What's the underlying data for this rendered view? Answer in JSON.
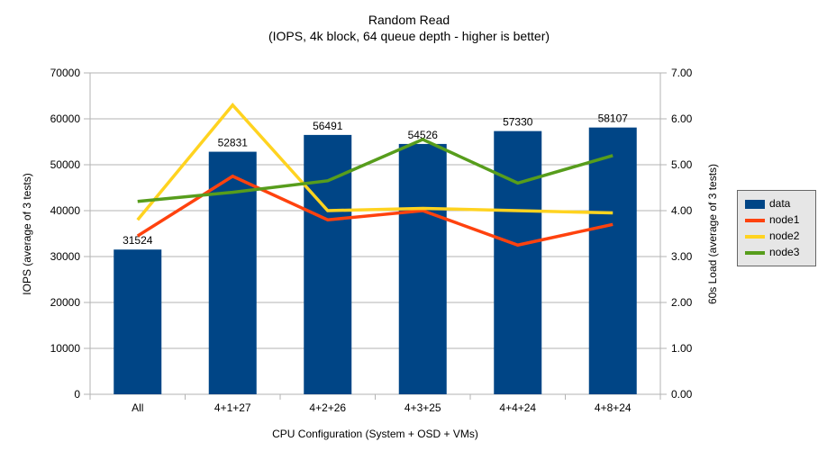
{
  "title": {
    "line1": "Random Read",
    "line2": "(IOPS, 4k block, 64 queue depth - higher is better)"
  },
  "chart_data": {
    "type": "bar",
    "subtype": "bar-and-line-combo",
    "categories": [
      "All",
      "4+1+27",
      "4+2+26",
      "4+3+25",
      "4+4+24",
      "4+8+24"
    ],
    "bar_series": {
      "name": "data",
      "color": "#004586",
      "axis": "left",
      "values": [
        31524,
        52831,
        56491,
        54526,
        57330,
        58107
      ],
      "data_labels": [
        "31524",
        "52831",
        "56491",
        "54526",
        "57330",
        "58107"
      ]
    },
    "line_series": [
      {
        "name": "node1",
        "color": "#ff420e",
        "axis": "right",
        "values": [
          3.45,
          4.75,
          3.8,
          4.0,
          3.25,
          3.7
        ]
      },
      {
        "name": "node2",
        "color": "#ffd320",
        "axis": "right",
        "values": [
          3.8,
          6.3,
          4.0,
          4.05,
          4.0,
          3.95
        ]
      },
      {
        "name": "node3",
        "color": "#579d1c",
        "axis": "right",
        "values": [
          4.2,
          4.4,
          4.65,
          5.55,
          4.6,
          5.2
        ]
      }
    ],
    "left_axis": {
      "label": "IOPS (average of 3 tests)",
      "min": 0,
      "max": 70000,
      "step": 10000,
      "decimals": 0
    },
    "right_axis": {
      "label": "60s Load (average of 3 tests)",
      "min": 0,
      "max": 7,
      "step": 1,
      "decimals": 2
    },
    "x_axis": {
      "label": "CPU Configuration (System + OSD + VMs)"
    },
    "grid": {
      "horizontal": true,
      "vertical": false,
      "color": "#b3b3b3"
    },
    "legend": {
      "position": "right",
      "entries": [
        {
          "label": "data",
          "type": "box",
          "color": "#004586"
        },
        {
          "label": "node1",
          "type": "line",
          "color": "#ff420e"
        },
        {
          "label": "node2",
          "type": "line",
          "color": "#ffd320"
        },
        {
          "label": "node3",
          "type": "line",
          "color": "#579d1c"
        }
      ]
    }
  }
}
